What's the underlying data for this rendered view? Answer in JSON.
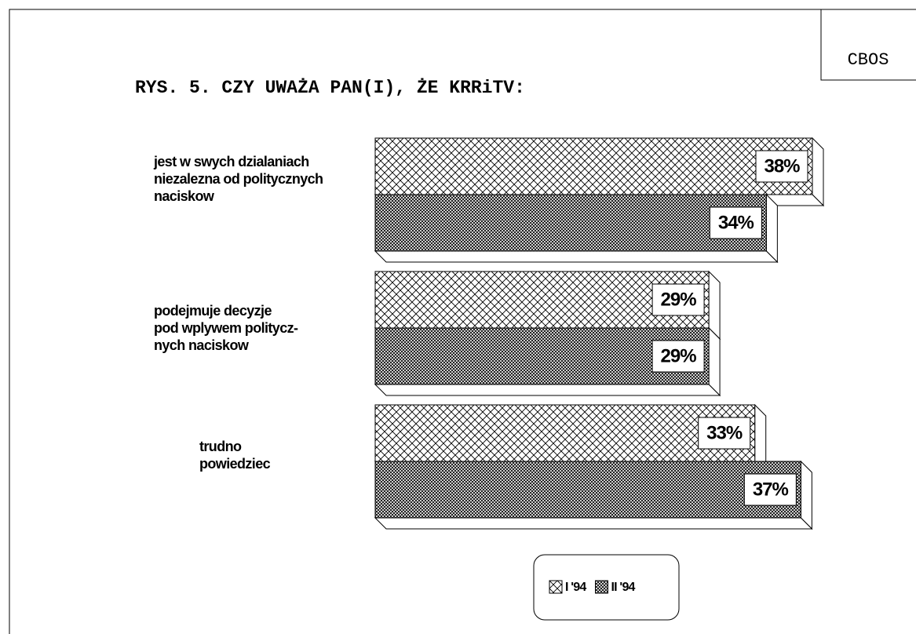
{
  "chart_data": {
    "type": "hbar3d",
    "corner_label": "CBOS",
    "title": "RYS. 5. CZY UWAŻA PAN(I), ŻE KRRiTV:",
    "categories": [
      "jest w swych dzialaniach\nniezalezna od politycznych\nnaciskow",
      "podejmuje decyzje\npod wplywem politycz-\nnych naciskow",
      "trudno\npowiedziec"
    ],
    "series": [
      {
        "name": "I '94",
        "color": "#000000",
        "pattern": "sparse",
        "values": [
          38,
          29,
          33
        ],
        "value_labels": [
          "38%",
          "29%",
          "33%"
        ]
      },
      {
        "name": "II '94",
        "color": "#000000",
        "pattern": "dense",
        "values": [
          34,
          29,
          37
        ],
        "value_labels": [
          "34%",
          "29%",
          "37%"
        ]
      }
    ]
  }
}
